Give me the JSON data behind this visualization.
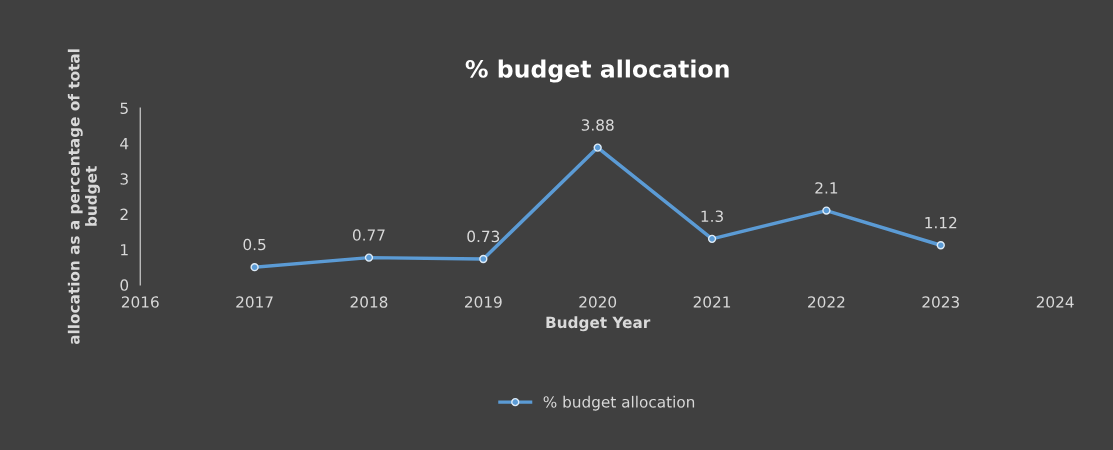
{
  "chart_data": {
    "type": "line",
    "title": "% budget allocation",
    "xlabel": "Budget Year",
    "ylabel": "allocation as a percentage of total budget",
    "x": [
      2017,
      2018,
      2019,
      2020,
      2021,
      2022,
      2023
    ],
    "series": [
      {
        "name": "% budget allocation",
        "color": "#5b9bd5",
        "values": [
          0.5,
          0.77,
          0.73,
          3.88,
          1.3,
          2.1,
          1.12
        ]
      }
    ],
    "xlim": [
      2016,
      2024
    ],
    "xticks": [
      2016,
      2017,
      2018,
      2019,
      2020,
      2021,
      2022,
      2023,
      2024
    ],
    "ylim": [
      0,
      5
    ],
    "yticks": [
      0,
      1,
      2,
      3,
      4,
      5
    ],
    "grid": false,
    "legend": "bottom",
    "marker": "circle",
    "line_style": "solid",
    "data_labels": true
  }
}
